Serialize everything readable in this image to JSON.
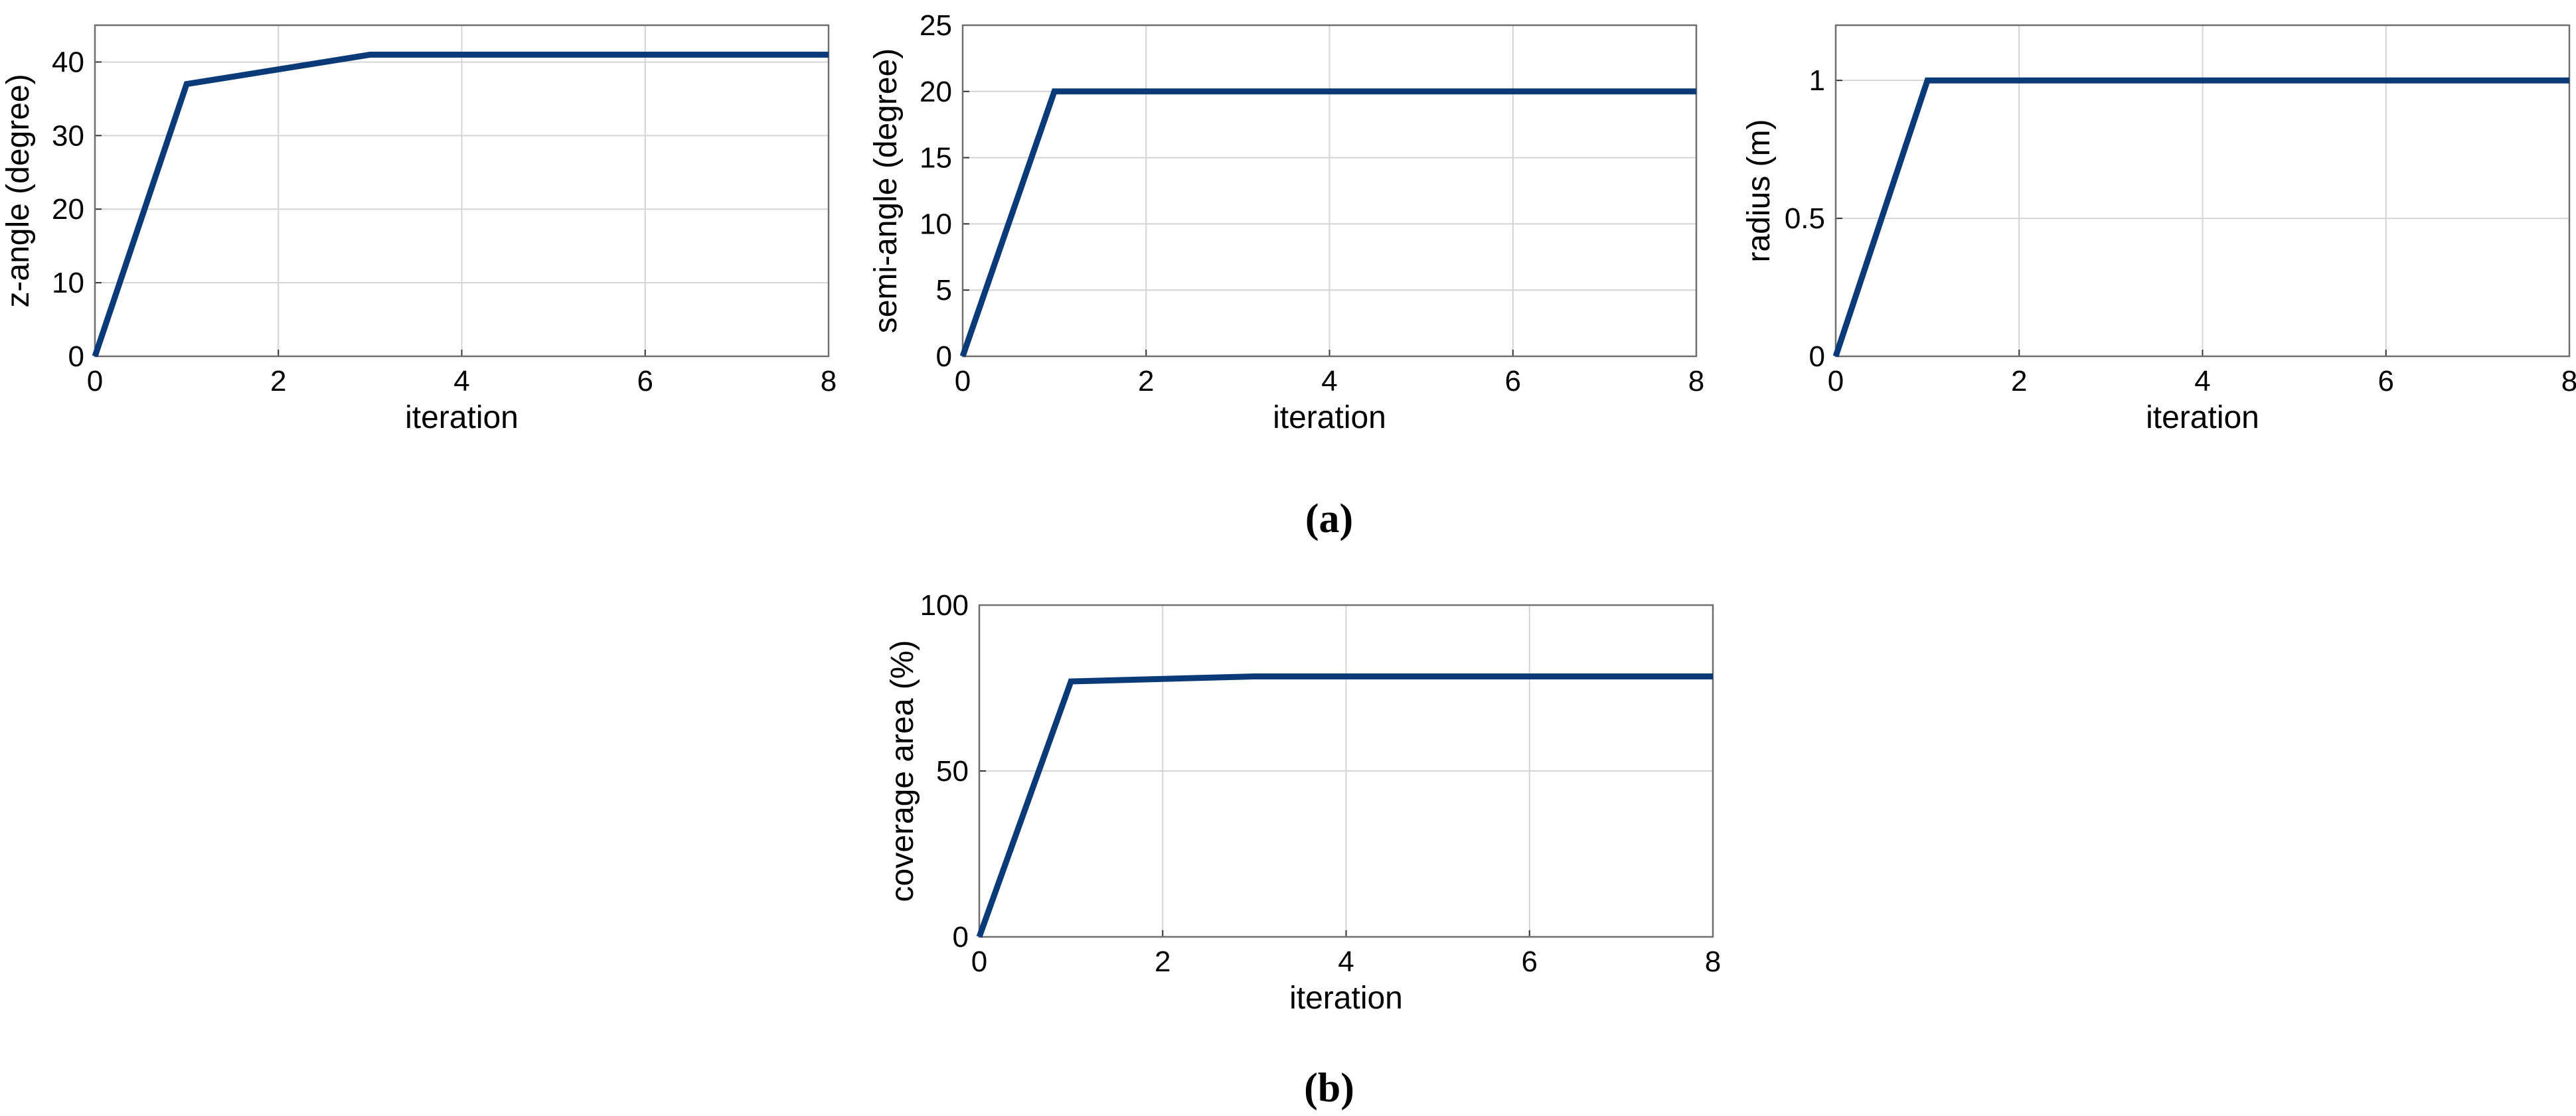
{
  "panel_labels": {
    "a": "(a)",
    "b": "(b)"
  },
  "colors": {
    "line": "#0b3a78",
    "grid": "#d4d4d4",
    "frame": "#6e6e6e"
  },
  "chart_data": [
    {
      "type": "line",
      "xlabel": "iteration",
      "ylabel": "z-angle (degree)",
      "xlim": [
        0,
        8
      ],
      "ylim": [
        0,
        45
      ],
      "xticks": [
        0,
        2,
        4,
        6,
        8
      ],
      "yticks": [
        0,
        10,
        20,
        30,
        40
      ],
      "grid": true,
      "series": [
        {
          "name": "z-angle",
          "x": [
            0,
            1,
            3,
            8
          ],
          "y": [
            0,
            37,
            41,
            41
          ]
        }
      ]
    },
    {
      "type": "line",
      "xlabel": "iteration",
      "ylabel": "semi-angle (degree)",
      "xlim": [
        0,
        8
      ],
      "ylim": [
        0,
        25
      ],
      "xticks": [
        0,
        2,
        4,
        6,
        8
      ],
      "yticks": [
        0,
        5,
        10,
        15,
        20,
        25
      ],
      "grid": true,
      "series": [
        {
          "name": "semi-angle",
          "x": [
            0,
            1,
            8
          ],
          "y": [
            0,
            20,
            20
          ]
        }
      ]
    },
    {
      "type": "line",
      "xlabel": "iteration",
      "ylabel": "radius (m)",
      "xlim": [
        0,
        8
      ],
      "ylim": [
        0,
        1.2
      ],
      "xticks": [
        0,
        2,
        4,
        6,
        8
      ],
      "yticks": [
        0,
        0.5,
        1
      ],
      "grid": true,
      "series": [
        {
          "name": "radius",
          "x": [
            0,
            1,
            8
          ],
          "y": [
            0,
            1,
            1
          ]
        }
      ]
    },
    {
      "type": "line",
      "xlabel": "iteration",
      "ylabel": "coverage area (%)",
      "xlim": [
        0,
        8
      ],
      "ylim": [
        0,
        100
      ],
      "xticks": [
        0,
        2,
        4,
        6,
        8
      ],
      "yticks": [
        0,
        50,
        100
      ],
      "grid": true,
      "series": [
        {
          "name": "coverage area",
          "x": [
            0,
            1,
            3,
            8
          ],
          "y": [
            0,
            77,
            78.5,
            78.5
          ]
        }
      ]
    }
  ]
}
